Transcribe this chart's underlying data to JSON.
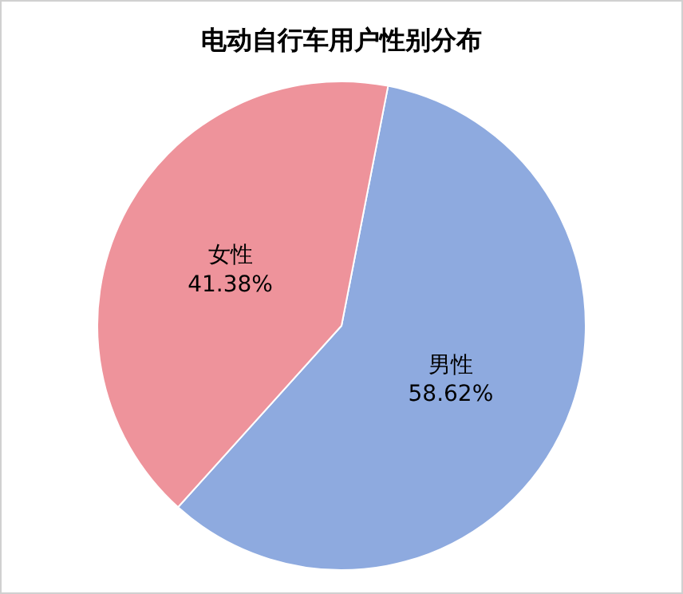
{
  "chart_data": {
    "type": "pie",
    "title": "电动自行车用户性别分布",
    "categories": [
      "男性",
      "女性"
    ],
    "values": [
      58.62,
      41.38
    ],
    "colors": [
      "#8eaadf",
      "#ee939b"
    ],
    "value_labels": [
      "58.62%",
      "41.38%"
    ],
    "legend": false
  }
}
